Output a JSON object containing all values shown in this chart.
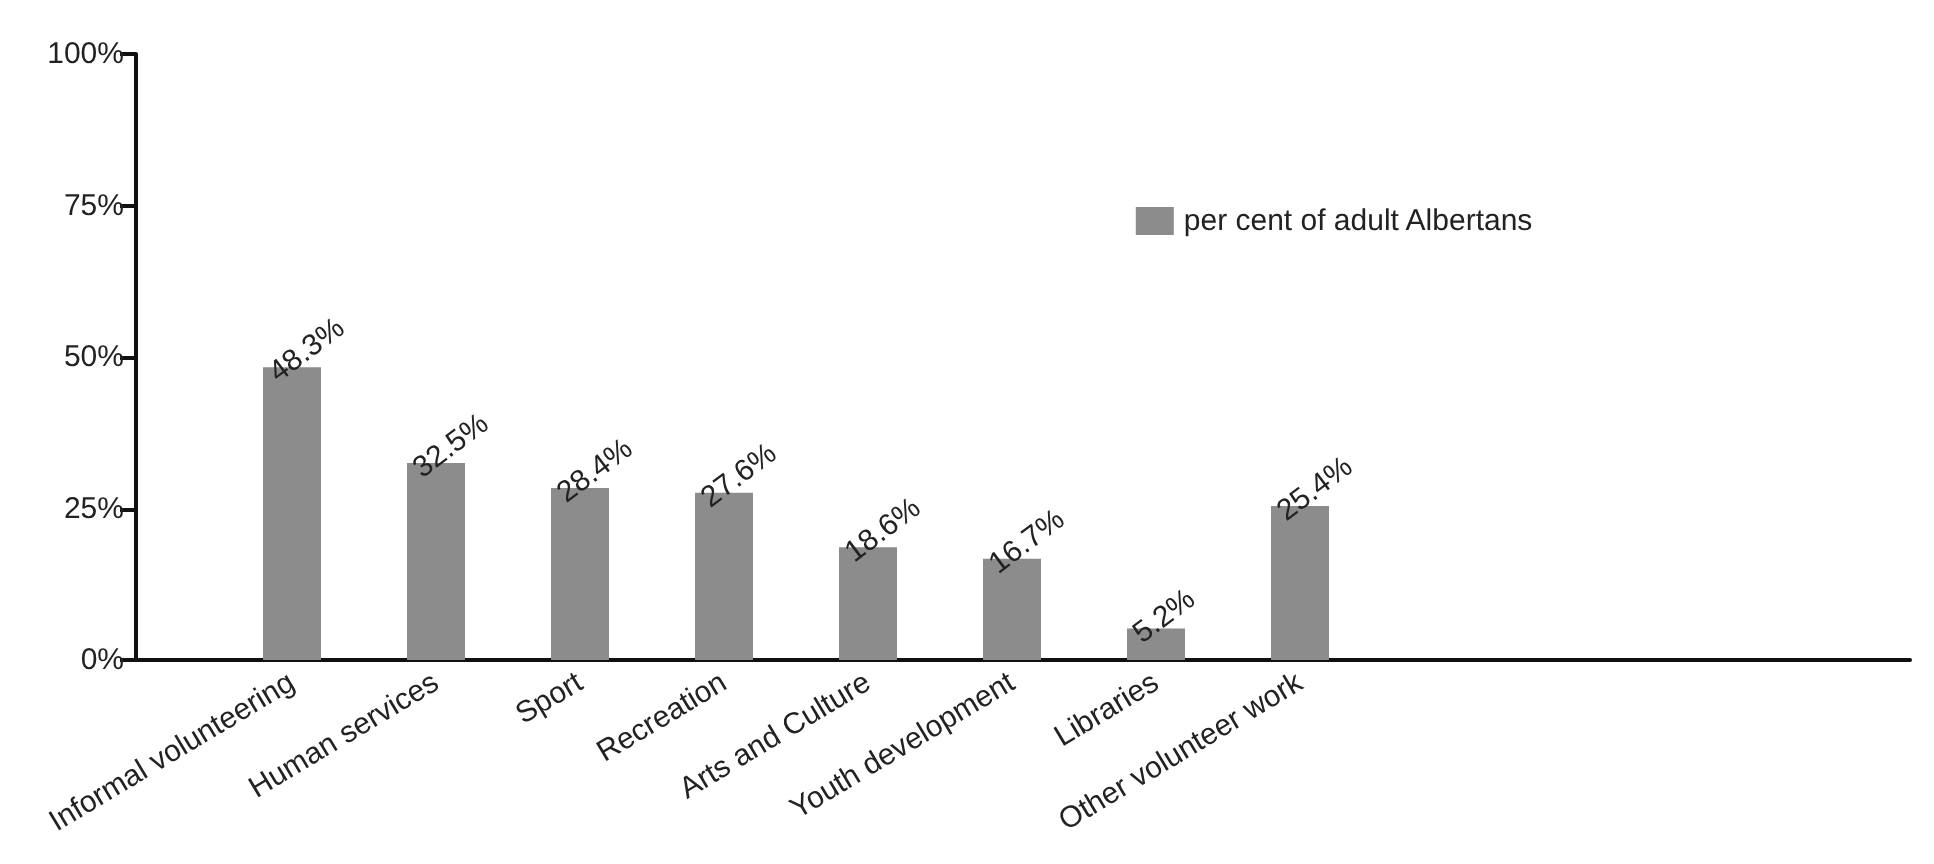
{
  "chart_data": {
    "type": "bar",
    "categories": [
      "Informal volunteering",
      "Human services",
      "Sport",
      "Recreation",
      "Arts and Culture",
      "Youth development",
      "Libraries",
      "Other volunteer work"
    ],
    "series": [
      {
        "name": "per cent of adult Albertans",
        "color": "#8c8c8c",
        "values": [
          48.3,
          32.5,
          28.4,
          27.6,
          18.6,
          16.7,
          5.2,
          25.4
        ],
        "value_labels": [
          "48.3%",
          "32.5%",
          "28.4%",
          "27.6%",
          "18.6%",
          "16.7%",
          "5.2%",
          "25.4%"
        ]
      }
    ],
    "ylim": [
      0,
      100
    ],
    "yticks": [
      {
        "value": 0,
        "label": "0%"
      },
      {
        "value": 25,
        "label": "25%"
      },
      {
        "value": 50,
        "label": "50%"
      },
      {
        "value": 75,
        "label": "75%"
      },
      {
        "value": 100,
        "label": "100%"
      }
    ],
    "grid": false,
    "legend": "top right"
  }
}
